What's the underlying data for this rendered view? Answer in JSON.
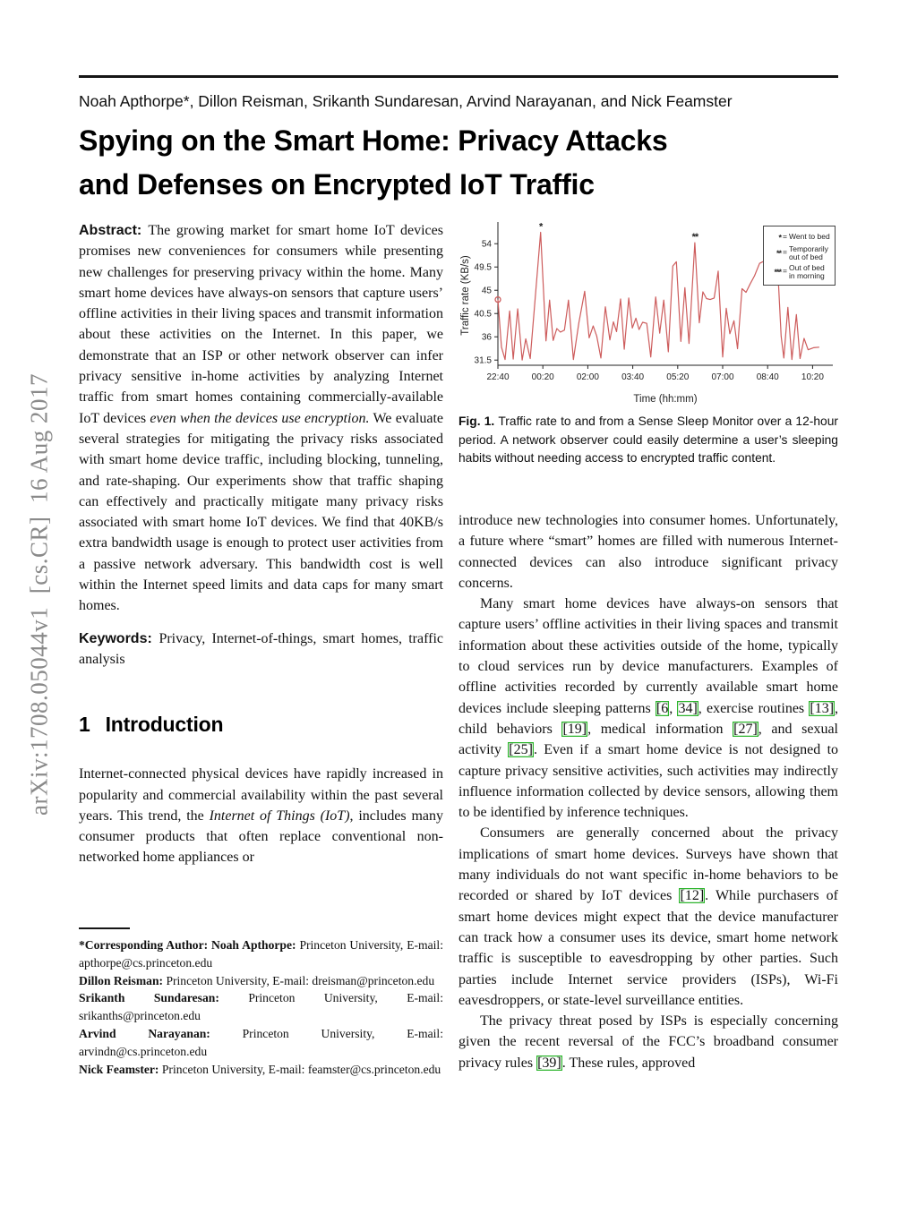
{
  "sidebar": {
    "arxiv_label": "arXiv:1708.05044v1  [cs.CR]  16 Aug 2017"
  },
  "header": {
    "authors": "Noah Apthorpe*, Dillon Reisman, Srikanth Sundaresan, Arvind Narayanan, and Nick Feamster",
    "title_line1": "Spying on the Smart Home: Privacy Attacks",
    "title_line2": "and Defenses on Encrypted IoT Traffic"
  },
  "left_column": {
    "abstract": {
      "segments": [
        {
          "s": "bsans",
          "t": "Abstract: "
        },
        {
          "t": "The growing market for smart home IoT devices promises new conveniences for consumers while presenting new challenges for preserving privacy within the home. Many smart home devices have always-on sensors that capture users’ offline activities in their living spaces and transmit information about these activities on the Internet. In this paper, we demonstrate that an ISP or other network observer can infer privacy sensitive in-home activities by analyzing Internet traffic from smart homes containing commercially-available IoT devices "
        },
        {
          "s": "i",
          "t": "even when the devices use encryption."
        },
        {
          "t": " We evaluate several strategies for mitigating the privacy risks associated with smart home device traffic, including blocking, tunneling, and rate-shaping. Our experiments show that traffic shaping can effectively and practically mitigate many privacy risks associated with smart home IoT devices. We find that 40KB/s extra bandwidth usage is enough to protect user activities from a passive network adversary. This bandwidth cost is well within the Internet speed limits and data caps for many smart homes."
        }
      ]
    },
    "keywords": {
      "segments": [
        {
          "s": "bsans",
          "t": "Keywords: "
        },
        {
          "t": "Privacy, Internet-of-things, smart homes, traffic analysis"
        }
      ]
    },
    "section1": {
      "number": "1",
      "title": "Introduction"
    },
    "intro": {
      "segments": [
        {
          "t": "Internet-connected physical devices have rapidly increased in popularity and commercial availability within the past several years. This trend, the "
        },
        {
          "s": "i",
          "t": "Internet of Things (IoT)"
        },
        {
          "t": ", includes many consumer products that often replace conventional non-networked home appliances or"
        }
      ]
    },
    "footnote": {
      "entries": [
        {
          "segments": [
            {
              "s": "b",
              "t": "*Corresponding Author: Noah Apthorpe: "
            },
            {
              "t": "Princeton University, E-mail: apthorpe@cs.princeton.edu"
            }
          ]
        },
        {
          "segments": [
            {
              "s": "b",
              "t": "Dillon Reisman: "
            },
            {
              "t": "Princeton University, E-mail: dreisman@princeton.edu"
            }
          ]
        },
        {
          "segments": [
            {
              "s": "b",
              "t": "Srikanth Sundaresan: "
            },
            {
              "t": "Princeton University, E-mail: srikanths@princeton.edu"
            }
          ]
        },
        {
          "segments": [
            {
              "s": "b",
              "t": "Arvind Narayanan: "
            },
            {
              "t": "Princeton University, E-mail: arvindn@cs.princeton.edu"
            }
          ]
        },
        {
          "segments": [
            {
              "s": "b",
              "t": "Nick Feamster: "
            },
            {
              "t": "Princeton University, E-mail: feamster@cs.princeton.edu"
            }
          ]
        }
      ]
    }
  },
  "right_column": {
    "figure_caption": {
      "segments": [
        {
          "s": "b",
          "t": "Fig. 1. "
        },
        {
          "t": "Traffic rate to and from a Sense Sleep Monitor over a 12-hour period. A network observer could easily determine a user’s sleeping habits without needing access to encrypted traffic content."
        }
      ]
    },
    "paragraphs": [
      {
        "indent": false,
        "segments": [
          {
            "t": "introduce new technologies into consumer homes. Unfortunately, a future where “smart” homes are filled with numerous Internet-connected devices can also introduce significant privacy concerns."
          }
        ]
      },
      {
        "indent": true,
        "segments": [
          {
            "t": "Many smart home devices have always-on sensors that capture users’ offline activities in their living spaces and transmit information about these activities outside of the home, typically to cloud services run by device manufacturers. Examples of offline activities recorded by currently available smart home devices include sleeping patterns "
          },
          {
            "s": "cite",
            "t": "[6"
          },
          {
            "t": ", "
          },
          {
            "s": "cite",
            "t": "34]"
          },
          {
            "t": ", exercise routines "
          },
          {
            "s": "cite",
            "t": "[13]"
          },
          {
            "t": ", child behaviors "
          },
          {
            "s": "cite",
            "t": "[19]"
          },
          {
            "t": ", medical information "
          },
          {
            "s": "cite",
            "t": "[27]"
          },
          {
            "t": ", and sexual activity "
          },
          {
            "s": "cite",
            "t": "[25]"
          },
          {
            "t": ". Even if a smart home device is not designed to capture privacy sensitive activities, such activities may indirectly influence information collected by device sensors, allowing them to be identified by inference techniques."
          }
        ]
      },
      {
        "indent": true,
        "segments": [
          {
            "t": "Consumers are generally concerned about the privacy implications of smart home devices. Surveys have shown that many individuals do not want specific in-home behaviors to be recorded or shared by IoT devices "
          },
          {
            "s": "cite",
            "t": "[12]"
          },
          {
            "t": ". While purchasers of smart home devices might expect that the device manufacturer can track how a consumer uses its device, smart home network traffic is susceptible to eavesdropping by other parties. Such parties include Internet service providers (ISPs), Wi-Fi eavesdroppers, or state-level surveillance entities."
          }
        ]
      },
      {
        "indent": true,
        "segments": [
          {
            "t": "The privacy threat posed by ISPs is especially concerning given the recent reversal of the FCC’s broadband consumer privacy rules "
          },
          {
            "s": "cite",
            "t": "[39]"
          },
          {
            "t": ". These rules, approved"
          }
        ]
      }
    ]
  },
  "chart_data": {
    "type": "line",
    "title": "",
    "xlabel": "Time (hh:mm)",
    "ylabel": "Traffic rate (KB/s)",
    "x_unit": "minutes after 22:40",
    "xlim": [
      0,
      745
    ],
    "ylim": [
      30.5,
      57.5
    ],
    "y_ticks": [
      31.5,
      36,
      40.5,
      45,
      49.5,
      54
    ],
    "x_ticks": [
      {
        "t": 0,
        "label": "22:40"
      },
      {
        "t": 100,
        "label": "00:20"
      },
      {
        "t": 200,
        "label": "02:00"
      },
      {
        "t": 300,
        "label": "03:40"
      },
      {
        "t": 400,
        "label": "05:20"
      },
      {
        "t": 500,
        "label": "07:00"
      },
      {
        "t": 600,
        "label": "08:40"
      },
      {
        "t": 700,
        "label": "10:20"
      }
    ],
    "line_color": "#cd5c5c",
    "grid": false,
    "legend_position": "top-right",
    "series": [
      {
        "name": "Traffic rate",
        "points": [
          [
            0,
            43.2
          ],
          [
            8,
            34
          ],
          [
            16,
            31.6
          ],
          [
            26,
            41
          ],
          [
            34,
            31.7
          ],
          [
            44,
            41.4
          ],
          [
            54,
            31.5
          ],
          [
            62,
            35.6
          ],
          [
            72,
            31.8
          ],
          [
            95,
            56.2
          ],
          [
            107,
            35.2
          ],
          [
            115,
            43.1
          ],
          [
            123,
            35.3
          ],
          [
            131,
            37.6
          ],
          [
            139,
            36.9
          ],
          [
            148,
            37.3
          ],
          [
            157,
            43.1
          ],
          [
            168,
            31.6
          ],
          [
            180,
            38.7
          ],
          [
            193,
            44.8
          ],
          [
            203,
            35.8
          ],
          [
            212,
            38.1
          ],
          [
            220,
            36.1
          ],
          [
            229,
            31.9
          ],
          [
            239,
            41.8
          ],
          [
            249,
            35.4
          ],
          [
            257,
            38.9
          ],
          [
            264,
            37
          ],
          [
            273,
            43.3
          ],
          [
            281,
            33.6
          ],
          [
            291,
            43.5
          ],
          [
            299,
            37.7
          ],
          [
            307,
            39.6
          ],
          [
            314,
            37.4
          ],
          [
            322,
            38.8
          ],
          [
            331,
            38.6
          ],
          [
            340,
            32.1
          ],
          [
            351,
            43.7
          ],
          [
            360,
            36.7
          ],
          [
            369,
            43.1
          ],
          [
            379,
            33.1
          ],
          [
            389,
            49.7
          ],
          [
            397,
            50.5
          ],
          [
            407,
            35.1
          ],
          [
            416,
            45.5
          ],
          [
            425,
            34.7
          ],
          [
            438,
            54.2
          ],
          [
            448,
            38.7
          ],
          [
            456,
            44.7
          ],
          [
            464,
            43.4
          ],
          [
            472,
            43.2
          ],
          [
            481,
            43.5
          ],
          [
            490,
            48.7
          ],
          [
            500,
            32.1
          ],
          [
            508,
            41.5
          ],
          [
            516,
            36.6
          ],
          [
            525,
            39.1
          ],
          [
            533,
            33.7
          ],
          [
            543,
            45.3
          ],
          [
            552,
            44.6
          ],
          [
            561,
            46.2
          ],
          [
            571,
            47.8
          ],
          [
            582,
            50.2
          ],
          [
            596,
            50.8
          ],
          [
            610,
            51.4
          ],
          [
            620,
            53.6
          ],
          [
            630,
            36.1
          ],
          [
            636,
            31.9
          ],
          [
            645,
            41.7
          ],
          [
            654,
            31.6
          ],
          [
            664,
            40.3
          ],
          [
            672,
            31.8
          ],
          [
            681,
            35.7
          ],
          [
            690,
            33.5
          ],
          [
            702,
            33.9
          ],
          [
            715,
            34
          ]
        ]
      }
    ],
    "start_marker": {
      "t": 0,
      "v": 43.2
    },
    "annotations": [
      {
        "t": 95,
        "v": 56.2,
        "label": "*"
      },
      {
        "t": 438,
        "v": 54.2,
        "label": "**"
      },
      {
        "t": 620,
        "v": 53.6,
        "label": "***"
      }
    ],
    "legend": [
      {
        "symbol": "*",
        "label": "Went to bed"
      },
      {
        "symbol": "**",
        "label": "Temporarily|out of bed"
      },
      {
        "symbol": "***",
        "label": "Out of bed|in morning"
      }
    ]
  }
}
